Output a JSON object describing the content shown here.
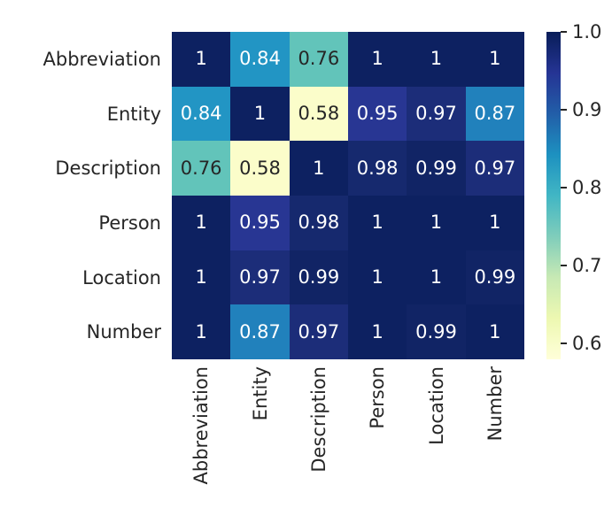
{
  "colors": {
    "background": "#ffffff",
    "tick_label_color": "#262626",
    "annotation_light_text": "#ffffff",
    "annotation_dark_text": "#262626"
  },
  "chart_data": {
    "type": "heatmap",
    "title": "",
    "xlabel": "",
    "ylabel": "",
    "categories": [
      "Abbreviation",
      "Entity",
      "Description",
      "Person",
      "Location",
      "Number"
    ],
    "matrix": [
      [
        1,
        0.84,
        0.76,
        1,
        1,
        1
      ],
      [
        0.84,
        1,
        0.58,
        0.95,
        0.97,
        0.87
      ],
      [
        0.76,
        0.58,
        1,
        0.98,
        0.99,
        0.97
      ],
      [
        1,
        0.95,
        0.98,
        1,
        1,
        1
      ],
      [
        1,
        0.97,
        0.99,
        1,
        1,
        0.99
      ],
      [
        1,
        0.87,
        0.97,
        1,
        0.99,
        1
      ]
    ],
    "annotations": [
      [
        "1",
        "0.84",
        "0.76",
        "1",
        "1",
        "1"
      ],
      [
        "0.84",
        "1",
        "0.58",
        "0.95",
        "0.97",
        "0.87"
      ],
      [
        "0.76",
        "0.58",
        "1",
        "0.98",
        "0.99",
        "0.97"
      ],
      [
        "1",
        "0.95",
        "0.98",
        "1",
        "1",
        "1"
      ],
      [
        "1",
        "0.97",
        "0.99",
        "1",
        "1",
        "0.99"
      ],
      [
        "1",
        "0.87",
        "0.97",
        "1",
        "0.99",
        "1"
      ]
    ],
    "colormap": "YlGnBu",
    "vmin": 0.58,
    "vmax": 1.0,
    "grid_on": false,
    "legend_position": "right-colorbar",
    "colorbar_ticks": [
      {
        "label": "1.0",
        "value": 1.0
      },
      {
        "label": "0.9",
        "value": 0.9
      },
      {
        "label": "0.8",
        "value": 0.8
      },
      {
        "label": "0.7",
        "value": 0.7
      },
      {
        "label": "0.6",
        "value": 0.6
      }
    ],
    "value_colors": {
      "1": "#0d2161",
      "0.99": "#112465",
      "0.98": "#16296e",
      "0.97": "#1c2d79",
      "0.95": "#283693",
      "0.87": "#2181bc",
      "0.84": "#2295c4",
      "0.76": "#62c4ba",
      "0.58": "#fbfdca"
    },
    "value_text_colors": {
      "1": "#ffffff",
      "0.99": "#ffffff",
      "0.98": "#ffffff",
      "0.97": "#ffffff",
      "0.95": "#ffffff",
      "0.87": "#ffffff",
      "0.84": "#ffffff",
      "0.76": "#262626",
      "0.58": "#262626"
    },
    "colorbar_gradient": [
      {
        "color": "#081d58",
        "pos": 0
      },
      {
        "color": "#253494",
        "pos": 12.5
      },
      {
        "color": "#225ea8",
        "pos": 25
      },
      {
        "color": "#1d91c0",
        "pos": 37.5
      },
      {
        "color": "#41b6c4",
        "pos": 50
      },
      {
        "color": "#7fcdbb",
        "pos": 62.5
      },
      {
        "color": "#c7e9b4",
        "pos": 75
      },
      {
        "color": "#edf8b1",
        "pos": 87.5
      },
      {
        "color": "#ffffd9",
        "pos": 100
      }
    ]
  }
}
